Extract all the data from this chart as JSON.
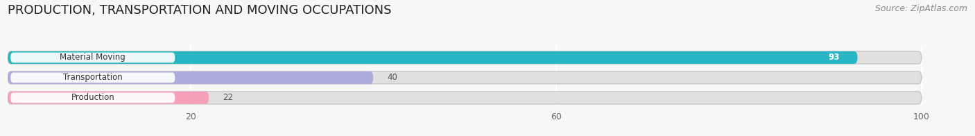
{
  "title": "PRODUCTION, TRANSPORTATION AND MOVING OCCUPATIONS",
  "source": "Source: ZipAtlas.com",
  "categories": [
    "Material Moving",
    "Transportation",
    "Production"
  ],
  "values": [
    93,
    40,
    22
  ],
  "bar_colors": [
    "#29b5c3",
    "#aaaadd",
    "#f5a0b8"
  ],
  "value_colors": [
    "#ffffff",
    "#555555",
    "#555555"
  ],
  "xlim": [
    0,
    100
  ],
  "xticks": [
    20,
    60,
    100
  ],
  "bg_color": "#f7f7f7",
  "bar_bg_color": "#e0e0e0",
  "title_fontsize": 13,
  "source_fontsize": 9,
  "bar_height": 0.62,
  "figsize": [
    14.06,
    1.96
  ],
  "dpi": 100
}
